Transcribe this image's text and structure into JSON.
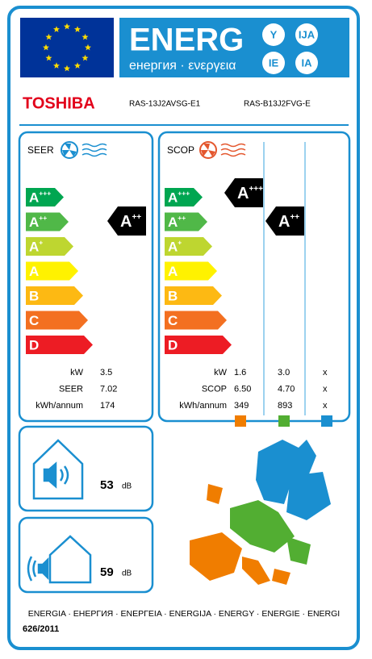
{
  "header": {
    "title": "ENERG",
    "subtitle": "енергия · ενεργεια",
    "suffixes": [
      "Y",
      "IJA",
      "IE",
      "IA"
    ]
  },
  "brand": "TOSHIBA",
  "models": [
    "RAS-13J2AVSG-E1",
    "RAS-B13J2FVG-E"
  ],
  "classes": [
    {
      "letter": "A",
      "sup": "+++"
    },
    {
      "letter": "A",
      "sup": "++"
    },
    {
      "letter": "A",
      "sup": "+"
    },
    {
      "letter": "A"
    },
    {
      "letter": "B"
    },
    {
      "letter": "C"
    },
    {
      "letter": "D"
    }
  ],
  "cooling": {
    "label": "SEER",
    "rating": {
      "letter": "A",
      "sup": "++"
    },
    "rows": [
      {
        "unit": "kW",
        "values": [
          "3.5"
        ]
      },
      {
        "unit": "SEER",
        "values": [
          "7.02"
        ]
      },
      {
        "unit": "kWh/annum",
        "values": [
          "174"
        ]
      }
    ]
  },
  "heating": {
    "label": "SCOP",
    "ratings": [
      {
        "letter": "A",
        "sup": "+++"
      },
      {
        "letter": "A",
        "sup": "++"
      }
    ],
    "rows": [
      {
        "unit": "kW",
        "values": [
          "1.6",
          "3.0",
          "x"
        ]
      },
      {
        "unit": "SCOP",
        "values": [
          "6.50",
          "4.70",
          "x"
        ]
      },
      {
        "unit": "kWh/annum",
        "values": [
          "349",
          "893",
          "x"
        ]
      }
    ]
  },
  "noise": [
    {
      "value": "53",
      "unit": "dB"
    },
    {
      "value": "59",
      "unit": "dB"
    }
  ],
  "footer": {
    "languages": "ENERGIA · ЕНЕРГИЯ · ΕΝΕΡΓΕΙΑ · ENERGIJA · ENERGY · ENERGIE · ENERGI",
    "regulation": "626/2011"
  }
}
